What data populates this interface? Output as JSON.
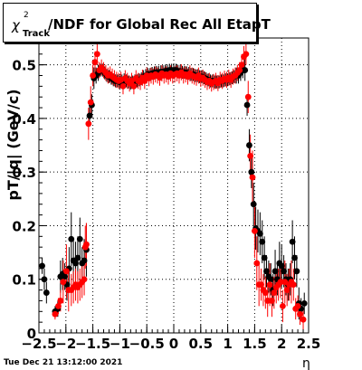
{
  "chart_data": {
    "type": "scatter",
    "title_symbol": "χ",
    "title_sup": "2",
    "title_sub": "Track",
    "title_rest": "/NDF for Global Rec All EtapT",
    "xlabel": "η",
    "ylabel": "pT/|q| (GeV/c)",
    "xlim": [
      -2.5,
      2.5
    ],
    "ylim": [
      0,
      0.55
    ],
    "xticks": [
      -2.5,
      -2,
      -1.5,
      -1,
      -0.5,
      0,
      0.5,
      1,
      1.5,
      2,
      2.5
    ],
    "xtick_labels": [
      "−2.5",
      "−2",
      "−1.5",
      "−1",
      "−0.5",
      "0",
      "0.5",
      "1",
      "1.5",
      "2",
      "2.5"
    ],
    "yticks": [
      0,
      0.1,
      0.2,
      0.3,
      0.4,
      0.5
    ],
    "ytick_labels": [
      "0",
      "0.1",
      "0.2",
      "0.3",
      "0.4",
      "0.5"
    ],
    "grid": true,
    "date": "Tue Dec 21 13:12:00 2021",
    "series": [
      {
        "color": "#000000",
        "points": [
          [
            -2.44,
            0.125,
            0.015
          ],
          [
            -2.4,
            0.1,
            0.02
          ],
          [
            -2.36,
            0.075,
            0.02
          ],
          [
            -2.2,
            0.04,
            0.01
          ],
          [
            -2.15,
            0.045,
            0.015
          ],
          [
            -2.1,
            0.105,
            0.03
          ],
          [
            -2.06,
            0.11,
            0.03
          ],
          [
            -2.02,
            0.105,
            0.025
          ],
          [
            -1.98,
            0.09,
            0.03
          ],
          [
            -1.94,
            0.12,
            0.04
          ],
          [
            -1.9,
            0.175,
            0.05
          ],
          [
            -1.86,
            0.135,
            0.04
          ],
          [
            -1.82,
            0.13,
            0.04
          ],
          [
            -1.78,
            0.14,
            0.04
          ],
          [
            -1.74,
            0.175,
            0.04
          ],
          [
            -1.7,
            0.13,
            0.03
          ],
          [
            -1.66,
            0.135,
            0.04
          ],
          [
            -1.62,
            0.155,
            0.05
          ],
          [
            -1.56,
            0.405,
            0.02
          ],
          [
            -1.52,
            0.425,
            0.02
          ],
          [
            -1.48,
            0.475,
            0.02
          ],
          [
            -1.44,
            0.48,
            0.015
          ],
          [
            -1.4,
            0.485,
            0.015
          ],
          [
            -1.36,
            0.49,
            0.012
          ],
          [
            -1.32,
            0.49,
            0.012
          ],
          [
            -1.28,
            0.485,
            0.012
          ],
          [
            -1.24,
            0.48,
            0.012
          ],
          [
            -1.2,
            0.478,
            0.012
          ],
          [
            -1.16,
            0.475,
            0.012
          ],
          [
            -1.12,
            0.472,
            0.012
          ],
          [
            -1.08,
            0.47,
            0.012
          ],
          [
            -1.04,
            0.47,
            0.012
          ],
          [
            -1.0,
            0.468,
            0.012
          ],
          [
            -0.96,
            0.47,
            0.012
          ],
          [
            -0.92,
            0.472,
            0.012
          ],
          [
            -0.88,
            0.47,
            0.012
          ],
          [
            -0.84,
            0.468,
            0.012
          ],
          [
            -0.8,
            0.466,
            0.012
          ],
          [
            -0.76,
            0.468,
            0.012
          ],
          [
            -0.72,
            0.47,
            0.012
          ],
          [
            -0.68,
            0.47,
            0.012
          ],
          [
            -0.64,
            0.472,
            0.012
          ],
          [
            -0.6,
            0.474,
            0.012
          ],
          [
            -0.56,
            0.478,
            0.012
          ],
          [
            -0.52,
            0.48,
            0.012
          ],
          [
            -0.48,
            0.482,
            0.012
          ],
          [
            -0.44,
            0.482,
            0.012
          ],
          [
            -0.4,
            0.484,
            0.012
          ],
          [
            -0.36,
            0.485,
            0.012
          ],
          [
            -0.32,
            0.486,
            0.012
          ],
          [
            -0.28,
            0.486,
            0.012
          ],
          [
            -0.24,
            0.487,
            0.012
          ],
          [
            -0.2,
            0.487,
            0.012
          ],
          [
            -0.16,
            0.488,
            0.012
          ],
          [
            -0.12,
            0.489,
            0.012
          ],
          [
            -0.08,
            0.49,
            0.012
          ],
          [
            -0.04,
            0.49,
            0.012
          ],
          [
            0.0,
            0.49,
            0.012
          ],
          [
            0.04,
            0.49,
            0.012
          ],
          [
            0.08,
            0.488,
            0.012
          ],
          [
            0.12,
            0.488,
            0.012
          ],
          [
            0.16,
            0.486,
            0.012
          ],
          [
            0.2,
            0.486,
            0.012
          ],
          [
            0.24,
            0.485,
            0.012
          ],
          [
            0.28,
            0.484,
            0.012
          ],
          [
            0.32,
            0.482,
            0.012
          ],
          [
            0.36,
            0.482,
            0.012
          ],
          [
            0.4,
            0.48,
            0.012
          ],
          [
            0.44,
            0.48,
            0.012
          ],
          [
            0.48,
            0.478,
            0.012
          ],
          [
            0.52,
            0.478,
            0.012
          ],
          [
            0.56,
            0.476,
            0.012
          ],
          [
            0.6,
            0.474,
            0.012
          ],
          [
            0.64,
            0.472,
            0.012
          ],
          [
            0.68,
            0.47,
            0.012
          ],
          [
            0.72,
            0.47,
            0.012
          ],
          [
            0.76,
            0.468,
            0.012
          ],
          [
            0.8,
            0.468,
            0.012
          ],
          [
            0.84,
            0.468,
            0.012
          ],
          [
            0.88,
            0.47,
            0.012
          ],
          [
            0.92,
            0.47,
            0.012
          ],
          [
            0.96,
            0.472,
            0.012
          ],
          [
            1.0,
            0.472,
            0.012
          ],
          [
            1.04,
            0.474,
            0.012
          ],
          [
            1.08,
            0.476,
            0.012
          ],
          [
            1.12,
            0.478,
            0.012
          ],
          [
            1.16,
            0.48,
            0.015
          ],
          [
            1.2,
            0.48,
            0.015
          ],
          [
            1.24,
            0.485,
            0.015
          ],
          [
            1.28,
            0.49,
            0.015
          ],
          [
            1.32,
            0.49,
            0.02
          ],
          [
            1.36,
            0.425,
            0.02
          ],
          [
            1.4,
            0.35,
            0.03
          ],
          [
            1.44,
            0.3,
            0.03
          ],
          [
            1.48,
            0.24,
            0.04
          ],
          [
            1.52,
            0.195,
            0.04
          ],
          [
            1.56,
            0.19,
            0.04
          ],
          [
            1.6,
            0.185,
            0.04
          ],
          [
            1.64,
            0.17,
            0.04
          ],
          [
            1.68,
            0.14,
            0.04
          ],
          [
            1.72,
            0.115,
            0.03
          ],
          [
            1.76,
            0.105,
            0.03
          ],
          [
            1.8,
            0.1,
            0.03
          ],
          [
            1.84,
            0.08,
            0.03
          ],
          [
            1.88,
            0.115,
            0.04
          ],
          [
            1.92,
            0.1,
            0.03
          ],
          [
            1.96,
            0.13,
            0.04
          ],
          [
            2.0,
            0.125,
            0.04
          ],
          [
            2.04,
            0.115,
            0.03
          ],
          [
            2.08,
            0.1,
            0.03
          ],
          [
            2.12,
            0.09,
            0.03
          ],
          [
            2.16,
            0.1,
            0.03
          ],
          [
            2.2,
            0.17,
            0.04
          ],
          [
            2.24,
            0.14,
            0.04
          ],
          [
            2.28,
            0.115,
            0.03
          ],
          [
            2.32,
            0.055,
            0.03
          ],
          [
            2.36,
            0.045,
            0.02
          ],
          [
            2.42,
            0.055,
            0.02
          ]
        ]
      },
      {
        "color": "#ff0000",
        "points": [
          [
            -2.2,
            0.035,
            0.01
          ],
          [
            -2.14,
            0.05,
            0.015
          ],
          [
            -2.1,
            0.06,
            0.02
          ],
          [
            -2.05,
            0.095,
            0.04
          ],
          [
            -1.99,
            0.115,
            0.05
          ],
          [
            -1.95,
            0.08,
            0.04
          ],
          [
            -1.9,
            0.08,
            0.03
          ],
          [
            -1.86,
            0.085,
            0.03
          ],
          [
            -1.82,
            0.09,
            0.03
          ],
          [
            -1.78,
            0.085,
            0.03
          ],
          [
            -1.74,
            0.09,
            0.03
          ],
          [
            -1.7,
            0.095,
            0.03
          ],
          [
            -1.66,
            0.1,
            0.03
          ],
          [
            -1.64,
            0.16,
            0.04
          ],
          [
            -1.62,
            0.165,
            0.04
          ],
          [
            -1.58,
            0.39,
            0.03
          ],
          [
            -1.54,
            0.43,
            0.03
          ],
          [
            -1.5,
            0.48,
            0.02
          ],
          [
            -1.46,
            0.505,
            0.02
          ],
          [
            -1.42,
            0.52,
            0.02
          ],
          [
            -1.38,
            0.49,
            0.015
          ],
          [
            -1.34,
            0.495,
            0.015
          ],
          [
            -1.3,
            0.49,
            0.015
          ],
          [
            -1.26,
            0.485,
            0.015
          ],
          [
            -1.22,
            0.48,
            0.015
          ],
          [
            -1.18,
            0.482,
            0.015
          ],
          [
            -1.14,
            0.478,
            0.015
          ],
          [
            -1.1,
            0.475,
            0.015
          ],
          [
            -1.06,
            0.472,
            0.015
          ],
          [
            -1.02,
            0.47,
            0.015
          ],
          [
            -0.98,
            0.472,
            0.015
          ],
          [
            -0.94,
            0.46,
            0.015
          ],
          [
            -0.9,
            0.475,
            0.015
          ],
          [
            -0.86,
            0.47,
            0.015
          ],
          [
            -0.82,
            0.465,
            0.015
          ],
          [
            -0.78,
            0.47,
            0.015
          ],
          [
            -0.74,
            0.46,
            0.015
          ],
          [
            -0.7,
            0.475,
            0.015
          ],
          [
            -0.66,
            0.47,
            0.015
          ],
          [
            -0.62,
            0.468,
            0.015
          ],
          [
            -0.58,
            0.476,
            0.015
          ],
          [
            -0.54,
            0.47,
            0.015
          ],
          [
            -0.5,
            0.48,
            0.015
          ],
          [
            -0.46,
            0.475,
            0.015
          ],
          [
            -0.42,
            0.48,
            0.015
          ],
          [
            -0.38,
            0.478,
            0.015
          ],
          [
            -0.34,
            0.482,
            0.015
          ],
          [
            -0.3,
            0.48,
            0.015
          ],
          [
            -0.26,
            0.476,
            0.015
          ],
          [
            -0.22,
            0.484,
            0.015
          ],
          [
            -0.18,
            0.48,
            0.015
          ],
          [
            -0.14,
            0.482,
            0.015
          ],
          [
            -0.1,
            0.478,
            0.015
          ],
          [
            -0.06,
            0.484,
            0.015
          ],
          [
            -0.02,
            0.48,
            0.015
          ],
          [
            0.02,
            0.482,
            0.015
          ],
          [
            0.06,
            0.484,
            0.015
          ],
          [
            0.1,
            0.48,
            0.015
          ],
          [
            0.14,
            0.486,
            0.015
          ],
          [
            0.18,
            0.48,
            0.015
          ],
          [
            0.22,
            0.482,
            0.015
          ],
          [
            0.26,
            0.478,
            0.015
          ],
          [
            0.3,
            0.484,
            0.015
          ],
          [
            0.34,
            0.48,
            0.015
          ],
          [
            0.38,
            0.478,
            0.015
          ],
          [
            0.42,
            0.476,
            0.015
          ],
          [
            0.46,
            0.48,
            0.015
          ],
          [
            0.5,
            0.474,
            0.015
          ],
          [
            0.54,
            0.476,
            0.015
          ],
          [
            0.58,
            0.472,
            0.015
          ],
          [
            0.62,
            0.468,
            0.015
          ],
          [
            0.66,
            0.47,
            0.015
          ],
          [
            0.7,
            0.465,
            0.015
          ],
          [
            0.74,
            0.468,
            0.015
          ],
          [
            0.78,
            0.47,
            0.015
          ],
          [
            0.82,
            0.466,
            0.015
          ],
          [
            0.86,
            0.472,
            0.015
          ],
          [
            0.9,
            0.47,
            0.015
          ],
          [
            0.94,
            0.474,
            0.015
          ],
          [
            0.98,
            0.472,
            0.015
          ],
          [
            1.02,
            0.476,
            0.015
          ],
          [
            1.06,
            0.472,
            0.015
          ],
          [
            1.1,
            0.478,
            0.015
          ],
          [
            1.14,
            0.48,
            0.015
          ],
          [
            1.18,
            0.485,
            0.015
          ],
          [
            1.22,
            0.49,
            0.015
          ],
          [
            1.26,
            0.5,
            0.02
          ],
          [
            1.3,
            0.515,
            0.02
          ],
          [
            1.34,
            0.52,
            0.02
          ],
          [
            1.38,
            0.44,
            0.03
          ],
          [
            1.42,
            0.33,
            0.04
          ],
          [
            1.46,
            0.29,
            0.05
          ],
          [
            1.5,
            0.19,
            0.05
          ],
          [
            1.54,
            0.13,
            0.05
          ],
          [
            1.58,
            0.09,
            0.04
          ],
          [
            1.62,
            0.09,
            0.03
          ],
          [
            1.66,
            0.08,
            0.03
          ],
          [
            1.7,
            0.075,
            0.03
          ],
          [
            1.74,
            0.06,
            0.03
          ],
          [
            1.78,
            0.09,
            0.04
          ],
          [
            1.82,
            0.06,
            0.03
          ],
          [
            1.86,
            0.075,
            0.03
          ],
          [
            1.9,
            0.085,
            0.03
          ],
          [
            1.94,
            0.09,
            0.03
          ],
          [
            1.98,
            0.095,
            0.03
          ],
          [
            2.02,
            0.05,
            0.03
          ],
          [
            2.06,
            0.095,
            0.04
          ],
          [
            2.1,
            0.08,
            0.03
          ],
          [
            2.14,
            0.09,
            0.03
          ],
          [
            2.18,
            0.095,
            0.04
          ],
          [
            2.22,
            0.09,
            0.03
          ],
          [
            2.26,
            0.045,
            0.02
          ],
          [
            2.3,
            0.05,
            0.02
          ],
          [
            2.34,
            0.035,
            0.02
          ],
          [
            2.4,
            0.025,
            0.02
          ]
        ]
      }
    ]
  }
}
